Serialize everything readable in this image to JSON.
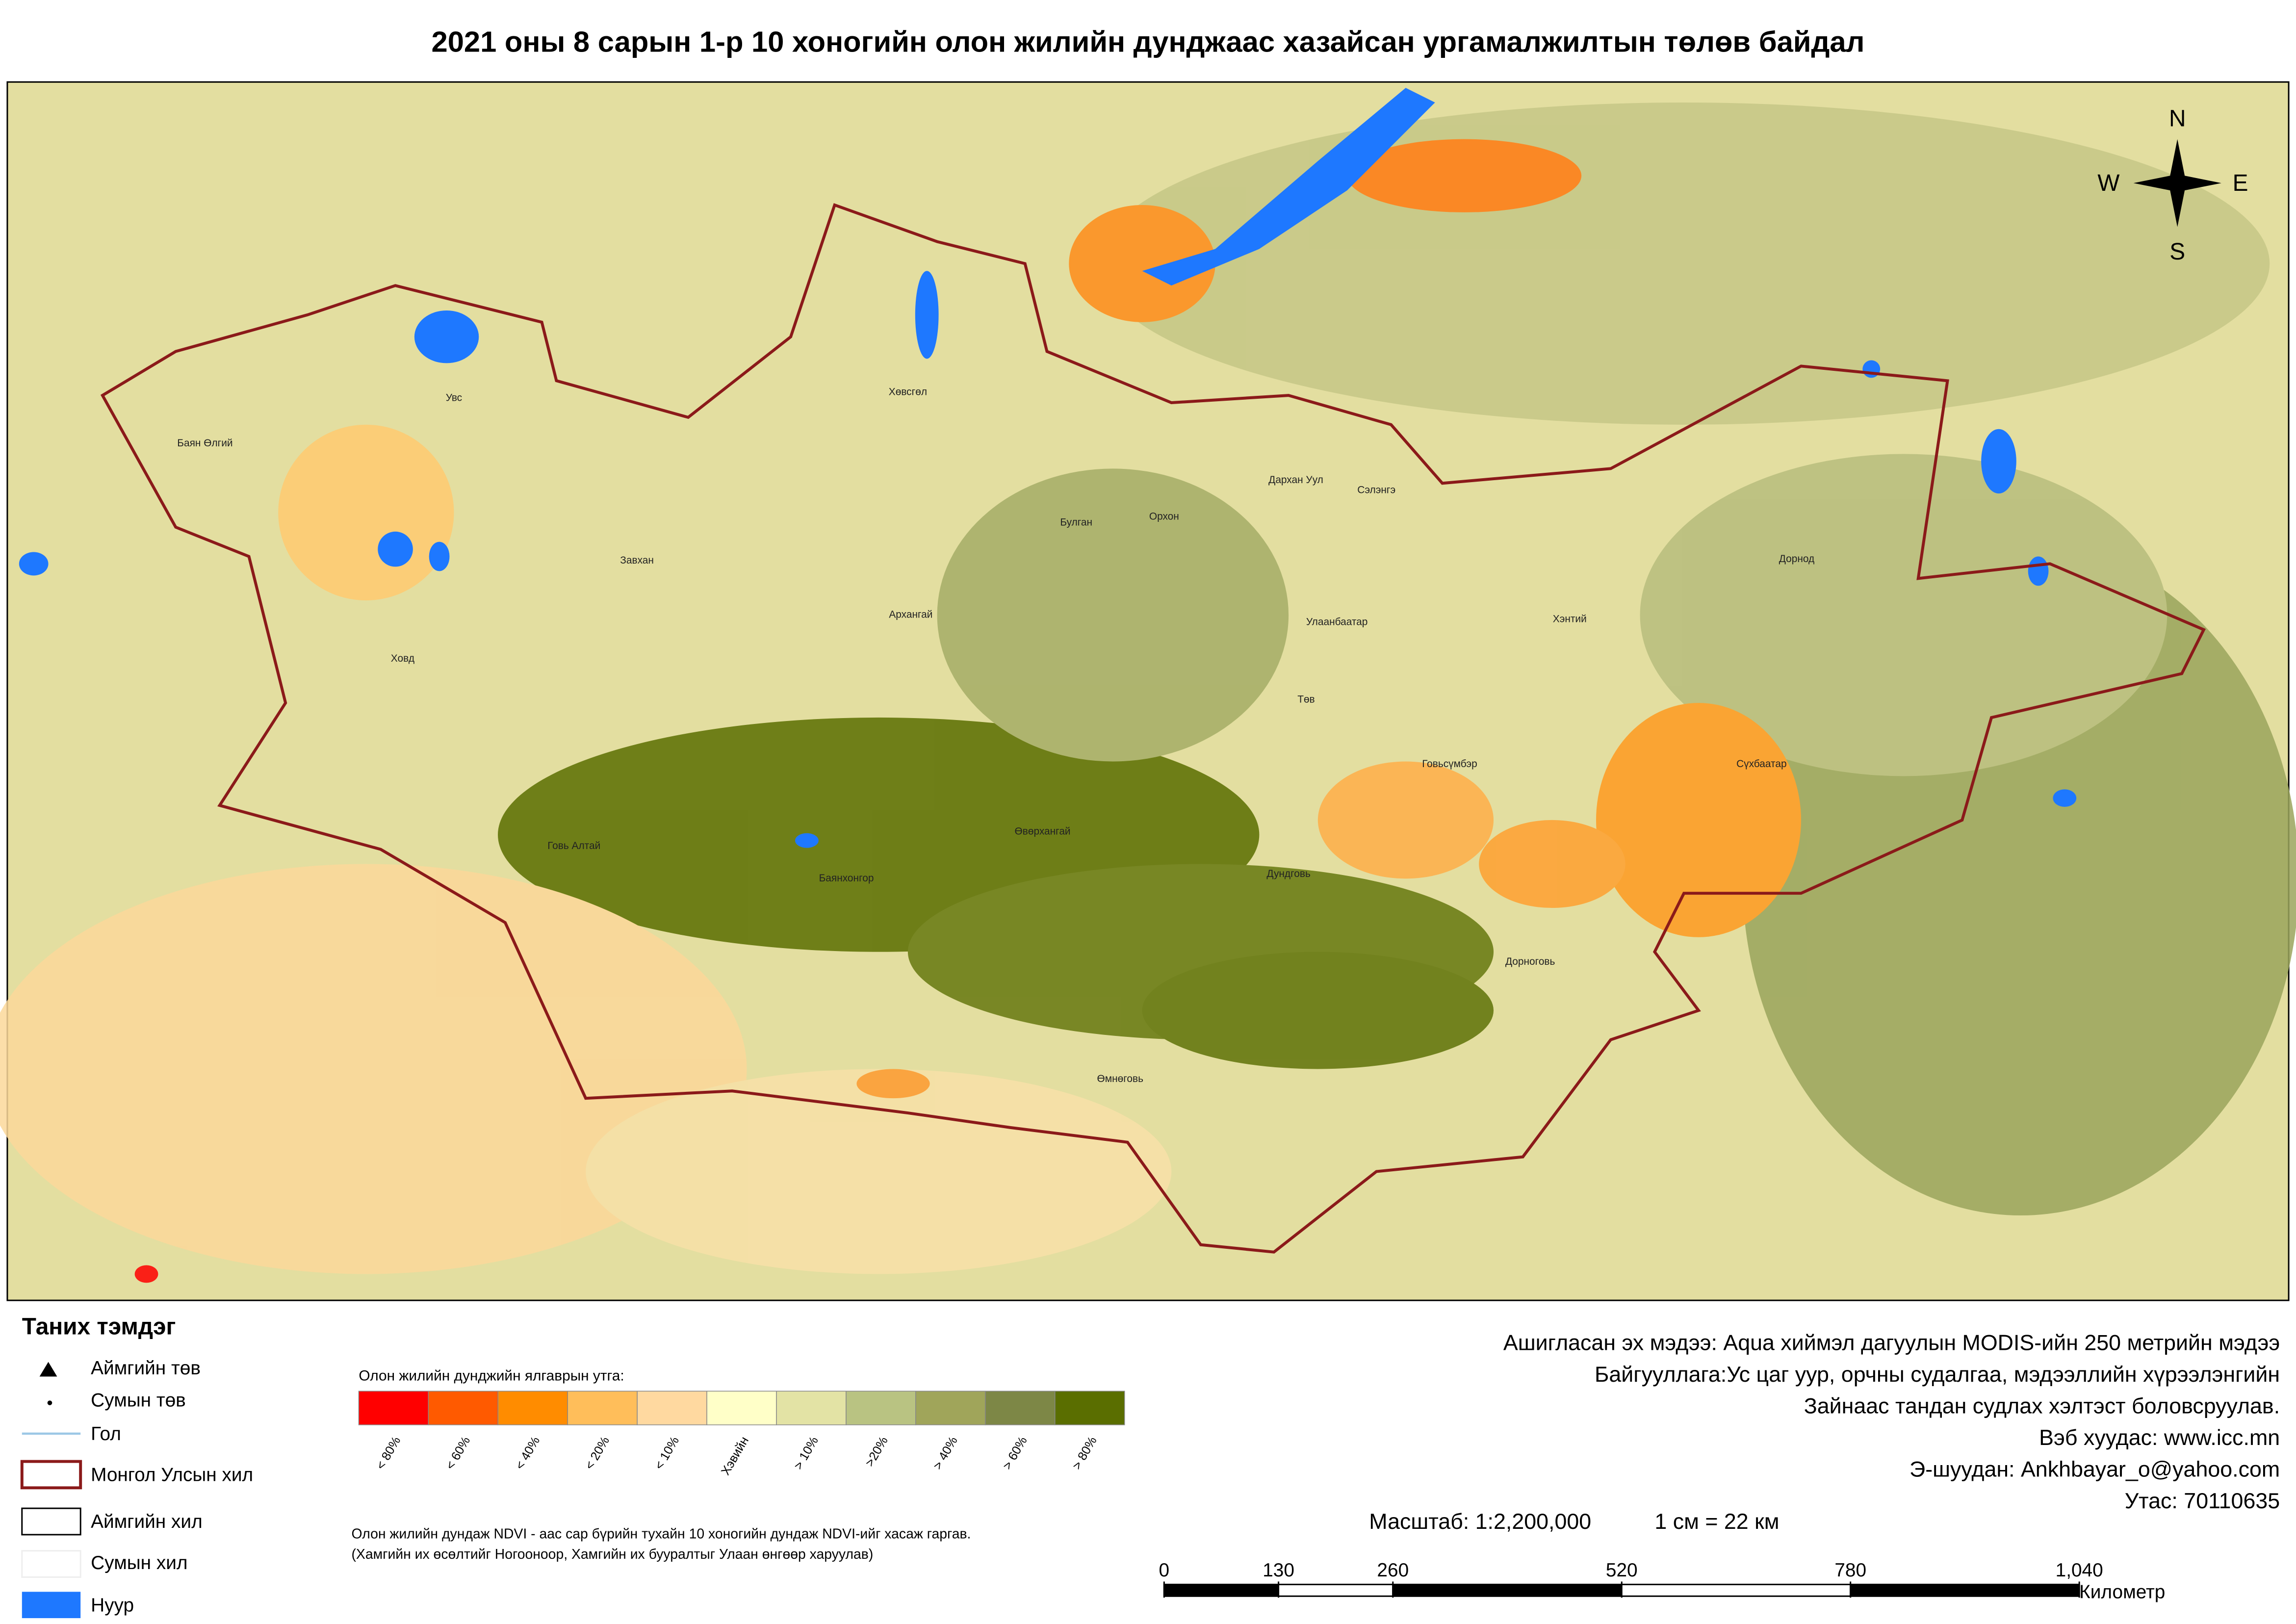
{
  "title": "2021 оны 8 сарын 1-р 10 хоногийн олон жилийн дунджаас хазайсан ургамалжилтын төлөв байдал",
  "compass": {
    "n": "N",
    "s": "S",
    "w": "W",
    "e": "E"
  },
  "places": [
    "Баян Өлгий",
    "Увс",
    "Ховд",
    "Завхан",
    "Хөвсгөл",
    "Архангай",
    "Булган",
    "Орхон",
    "Дархан Уул",
    "Сэлэнгэ",
    "Улаанбаатар",
    "Төв",
    "Хэнтий",
    "Дорнод",
    "Сүхбаатар",
    "Говьсүмбэр",
    "Дундговь",
    "Дорноговь",
    "Өвөрхангай",
    "Баянхонгор",
    "Говь Алтай",
    "Өмнөговь"
  ],
  "legend": {
    "title": "Таних тэмдэг",
    "items": [
      "Аймгийн төв",
      "Сумын төв",
      "Гол",
      "Монгол Улсын хил",
      "Аймгийн хил",
      "Сумын хил",
      "Нуур"
    ]
  },
  "ramp": {
    "title": "Олон жилийн дунджийн ялгаврын утга:",
    "classes": [
      {
        "label": "< 80%",
        "color": "#ff0000"
      },
      {
        "label": "< 60%",
        "color": "#ff5a00"
      },
      {
        "label": "< 40%",
        "color": "#ff8c00"
      },
      {
        "label": "< 20%",
        "color": "#ffbe5a"
      },
      {
        "label": "< 10%",
        "color": "#ffd9a0"
      },
      {
        "label": "Хэвийн",
        "color": "#ffffc8"
      },
      {
        "label": "> 10%",
        "color": "#e3e3a5"
      },
      {
        "label": ">20%",
        "color": "#b9c382"
      },
      {
        "label": "> 40%",
        "color": "#a0a55a"
      },
      {
        "label": "> 60%",
        "color": "#7d8746"
      },
      {
        "label": "> 80%",
        "color": "#5a6e00"
      }
    ],
    "note": [
      "Олон жилийн дундаж NDVI - аас сар бүрийн тухайн 10 хоногийн дундаж NDVI-ийг хасаж гаргав.",
      "(Хамгийн их өсөлтийг Ногооноор,  Хамгийн их бууралтыг Улаан өнгөөр харуулав)"
    ]
  },
  "info": [
    "Ашигласан эх мэдээ: Aqua хиймэл дагуулын MODIS-ийн 250 метрийн мэдээ",
    "Байгууллага:Ус цаг уур, орчны судалгаа, мэдээллийн хүрээлэнгийн",
    "Зайнаас тандан судлах хэлтэст боловсруулав.",
    "Вэб хуудас: www.icc.mn",
    "Э-шуудан: Ankhbayar_o@yahoo.com",
    "Утас: 70110635"
  ],
  "scale": {
    "ratio": "Масштаб: 1:2,200,000",
    "equiv": "1 см = 22 км",
    "ticks": [
      0,
      130,
      260,
      520,
      780,
      {
        "value": 1040,
        "label": "1,040"
      }
    ],
    "unit": "Километр"
  }
}
